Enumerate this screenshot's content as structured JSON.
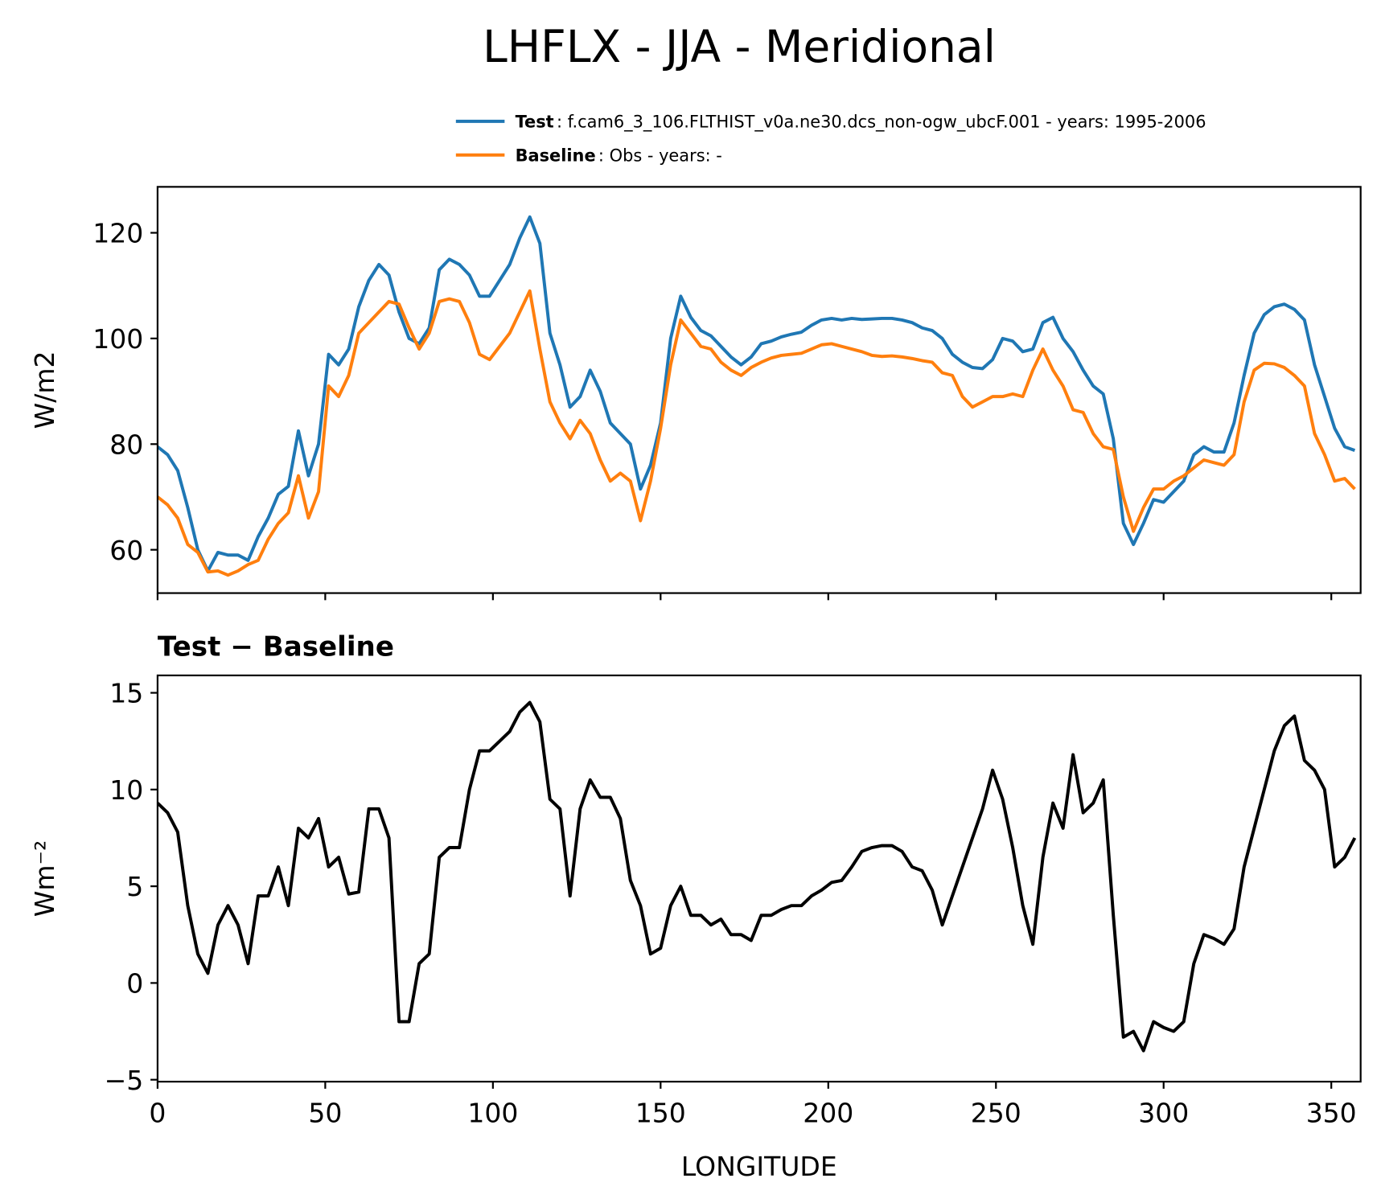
{
  "chart_data": [
    {
      "type": "line",
      "title": "LHFLX - JJA - Meridional",
      "ylabel": "W/m2",
      "x": [
        0,
        3,
        6,
        9,
        12,
        15,
        18,
        21,
        24,
        27,
        30,
        33,
        36,
        39,
        42,
        45,
        48,
        51,
        54,
        57,
        60,
        63,
        66,
        69,
        72,
        75,
        78,
        81,
        84,
        87,
        90,
        93,
        96,
        99,
        102,
        105,
        108,
        111,
        114,
        117,
        120,
        123,
        126,
        129,
        132,
        135,
        138,
        141,
        144,
        147,
        150,
        153,
        156,
        159,
        162,
        165,
        168,
        171,
        174,
        177,
        180,
        183,
        186,
        189,
        192,
        195,
        198,
        201,
        204,
        207,
        210,
        213,
        216,
        219,
        222,
        225,
        228,
        231,
        234,
        237,
        240,
        243,
        246,
        249,
        252,
        255,
        258,
        261,
        264,
        267,
        270,
        273,
        276,
        279,
        282,
        285,
        288,
        291,
        294,
        297,
        300,
        303,
        306,
        309,
        312,
        315,
        318,
        321,
        324,
        327,
        330,
        333,
        336,
        339,
        342,
        345,
        348,
        351,
        354,
        357
      ],
      "series": [
        {
          "name": "Test",
          "label": ": f.cam6_3_106.FLTHIST_v0a.ne30.dcs_non-ogw_ubcF.001 - years: 1995-2006",
          "color": "#1f77b4",
          "values": [
            79.5,
            78,
            75,
            68,
            60,
            56,
            59.5,
            59,
            59,
            58,
            62.5,
            66,
            70.5,
            72,
            82.5,
            74,
            80,
            97,
            95,
            98,
            106,
            111,
            114,
            112,
            105,
            100,
            99,
            102,
            113,
            115,
            114,
            112,
            108,
            108,
            111,
            114,
            119,
            123,
            118,
            101,
            95,
            87,
            89,
            94,
            90,
            84,
            82,
            80,
            71.5,
            76,
            84,
            100,
            108,
            104,
            101.5,
            100.5,
            98.5,
            96.5,
            95,
            96.5,
            99,
            99.5,
            100.3,
            100.8,
            101.2,
            102.5,
            103.5,
            103.8,
            103.5,
            103.8,
            103.6,
            103.7,
            103.8,
            103.8,
            103.5,
            103,
            102,
            101.5,
            100,
            97,
            95.5,
            94.5,
            94.3,
            96,
            100,
            99.5,
            97.5,
            98,
            103,
            104,
            100,
            97.5,
            94,
            91,
            89.5,
            81,
            65,
            61,
            65,
            69.5,
            69,
            71,
            73,
            78,
            79.5,
            78.5,
            78.5,
            84,
            93,
            101,
            104.5,
            106,
            106.5,
            105.5,
            103.5,
            95,
            89,
            83,
            79.5,
            78.8
          ]
        },
        {
          "name": "Baseline",
          "label": ": Obs - years: -",
          "color": "#ff7f0e",
          "values": [
            70,
            68.5,
            66,
            61,
            59.5,
            55.8,
            56,
            55.2,
            56,
            57.2,
            58,
            62,
            65,
            67,
            74,
            66,
            71,
            91,
            89,
            93,
            101,
            103,
            105,
            107,
            106.5,
            102,
            98,
            101,
            107,
            107.5,
            107,
            103,
            97,
            96,
            98.5,
            101,
            105,
            109,
            98,
            88,
            84,
            81,
            84.5,
            82,
            77,
            73,
            74.5,
            73,
            65.5,
            73,
            83,
            95,
            103.5,
            101,
            98.5,
            98,
            95.5,
            94,
            93,
            94.5,
            95.5,
            96.3,
            96.8,
            97,
            97.2,
            98,
            98.8,
            99,
            98.5,
            98,
            97.5,
            96.8,
            96.6,
            96.7,
            96.5,
            96.2,
            95.8,
            95.5,
            93.5,
            93,
            89,
            87,
            88,
            89,
            89,
            89.5,
            89,
            94,
            98,
            94,
            91,
            86.5,
            86,
            82,
            79.5,
            79,
            70,
            63.5,
            68,
            71.5,
            71.5,
            73,
            74,
            75.5,
            77,
            76.5,
            76,
            78,
            88,
            94,
            95.3,
            95.2,
            94.5,
            93,
            91,
            82,
            78,
            73,
            73.5,
            71.5
          ]
        }
      ],
      "xlim": [
        0,
        358.75
      ],
      "xticks": [
        0,
        50,
        100,
        150,
        200,
        250,
        300,
        350
      ],
      "xtick_labels": false,
      "ylim": [
        51.8,
        128.7
      ],
      "yticks": [
        60,
        80,
        100,
        120
      ],
      "legend": "upper right"
    },
    {
      "type": "line",
      "title": "Test − Baseline",
      "ylabel": "Wm⁻²",
      "xlabel": "LONGITUDE",
      "x": [
        0,
        3,
        6,
        9,
        12,
        15,
        18,
        21,
        24,
        27,
        30,
        33,
        36,
        39,
        42,
        45,
        48,
        51,
        54,
        57,
        60,
        63,
        66,
        69,
        72,
        75,
        78,
        81,
        84,
        87,
        90,
        93,
        96,
        99,
        102,
        105,
        108,
        111,
        114,
        117,
        120,
        123,
        126,
        129,
        132,
        135,
        138,
        141,
        144,
        147,
        150,
        153,
        156,
        159,
        162,
        165,
        168,
        171,
        174,
        177,
        180,
        183,
        186,
        189,
        192,
        195,
        198,
        201,
        204,
        207,
        210,
        213,
        216,
        219,
        222,
        225,
        228,
        231,
        234,
        237,
        240,
        243,
        246,
        249,
        252,
        255,
        258,
        261,
        264,
        267,
        270,
        273,
        276,
        279,
        282,
        285,
        288,
        291,
        294,
        297,
        300,
        303,
        306,
        309,
        312,
        315,
        318,
        321,
        324,
        327,
        330,
        333,
        336,
        339,
        342,
        345,
        348,
        351,
        354,
        357
      ],
      "series": [
        {
          "color": "#000000",
          "values": [
            9.3,
            8.8,
            7.8,
            4,
            1.5,
            0.5,
            3,
            4,
            3,
            1,
            4.5,
            4.5,
            6,
            4,
            8,
            7.5,
            8.5,
            6,
            6.5,
            4.6,
            4.7,
            9,
            9,
            7.5,
            -2,
            -2,
            1,
            1.5,
            6.5,
            7,
            7,
            10,
            12,
            12,
            12.5,
            13,
            14,
            14.5,
            13.5,
            9.5,
            9,
            4.5,
            9,
            10.5,
            9.6,
            9.6,
            8.5,
            5.3,
            4,
            1.5,
            1.8,
            4,
            5,
            3.5,
            3.5,
            3,
            3.3,
            2.5,
            2.5,
            2.2,
            3.5,
            3.5,
            3.8,
            4,
            4,
            4.5,
            4.8,
            5.2,
            5.3,
            6,
            6.8,
            7,
            7.1,
            7.1,
            6.8,
            6,
            5.8,
            4.8,
            3,
            4.5,
            6,
            7.5,
            9,
            11,
            9.5,
            7,
            4,
            2,
            6.5,
            9.3,
            8,
            11.8,
            8.8,
            9.3,
            10.5,
            3.5,
            -2.8,
            -2.5,
            -3.5,
            -2,
            -2.3,
            -2.5,
            -2,
            1,
            2.5,
            2.3,
            2,
            2.8,
            6,
            8,
            10,
            12,
            13.3,
            13.8,
            11.5,
            11,
            10,
            6,
            6.5,
            7.5
          ]
        }
      ],
      "xlim": [
        0,
        358.75
      ],
      "xticks": [
        0,
        50,
        100,
        150,
        200,
        250,
        300,
        350
      ],
      "ylim": [
        -5.1,
        15.9
      ],
      "yticks": [
        {
          "value": -5,
          "label": "−5"
        },
        0,
        5,
        10,
        15
      ]
    }
  ]
}
